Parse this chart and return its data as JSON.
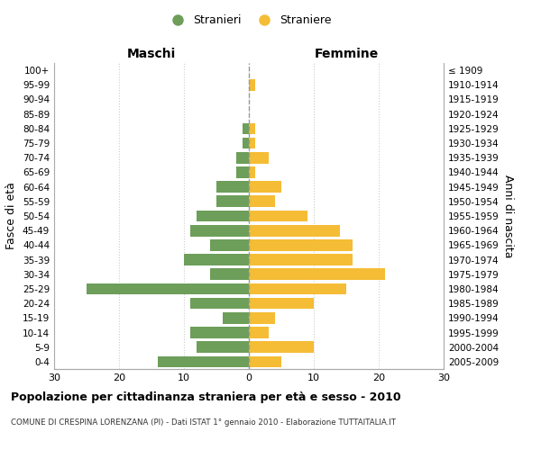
{
  "age_groups": [
    "0-4",
    "5-9",
    "10-14",
    "15-19",
    "20-24",
    "25-29",
    "30-34",
    "35-39",
    "40-44",
    "45-49",
    "50-54",
    "55-59",
    "60-64",
    "65-69",
    "70-74",
    "75-79",
    "80-84",
    "85-89",
    "90-94",
    "95-99",
    "100+"
  ],
  "birth_years": [
    "2005-2009",
    "2000-2004",
    "1995-1999",
    "1990-1994",
    "1985-1989",
    "1980-1984",
    "1975-1979",
    "1970-1974",
    "1965-1969",
    "1960-1964",
    "1955-1959",
    "1950-1954",
    "1945-1949",
    "1940-1944",
    "1935-1939",
    "1930-1934",
    "1925-1929",
    "1920-1924",
    "1915-1919",
    "1910-1914",
    "≤ 1909"
  ],
  "maschi": [
    14,
    8,
    9,
    4,
    9,
    25,
    6,
    10,
    6,
    9,
    8,
    5,
    5,
    2,
    2,
    1,
    1,
    0,
    0,
    0,
    0
  ],
  "femmine": [
    5,
    10,
    3,
    4,
    10,
    15,
    21,
    16,
    16,
    14,
    9,
    4,
    5,
    1,
    3,
    1,
    1,
    0,
    0,
    1,
    0
  ],
  "color_maschi": "#6d9e5a",
  "color_femmine": "#f5bc35",
  "title": "Popolazione per cittadinanza straniera per età e sesso - 2010",
  "subtitle": "COMUNE DI CRESPINA LORENZANA (PI) - Dati ISTAT 1° gennaio 2010 - Elaborazione TUTTAITALIA.IT",
  "xlabel_left": "Maschi",
  "xlabel_right": "Femmine",
  "ylabel_left": "Fasce di età",
  "ylabel_right": "Anni di nascita",
  "legend_maschi": "Stranieri",
  "legend_femmine": "Straniere",
  "xlim": 30,
  "background_color": "#ffffff",
  "grid_color": "#cccccc"
}
